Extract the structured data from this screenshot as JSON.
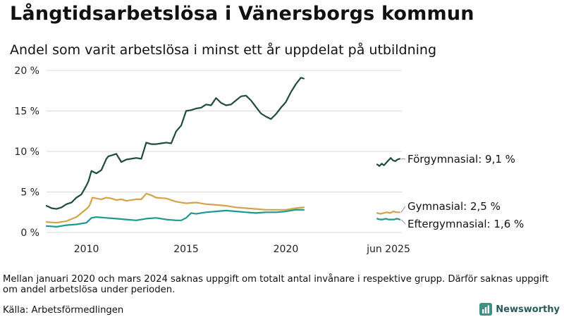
{
  "title": "Långtidsarbetslösa i Vänersborgs kommun",
  "subtitle": "Andel som varit arbetslösa i minst ett år uppdelat på utbildning",
  "footnote": "Mellan januari 2020 och mars 2024 saknas uppgift om totalt antal invånare i respektive grupp. Därför saknas uppgift om andel arbetslösa under perioden.",
  "source": "Källa: Arbetsförmedlingen",
  "brand": "Newsworthy",
  "colors": {
    "forgymnasial": "#1e4a42",
    "gymnasial": "#d4a24a",
    "eftergymnasial": "#1a9a8c",
    "grid": "#d9d9d9",
    "brand": "#2a5a57"
  },
  "chart_data": {
    "type": "line",
    "ylim": [
      0,
      20
    ],
    "y_ticks": [
      {
        "value": 0,
        "label": "0 %"
      },
      {
        "value": 5,
        "label": "5 %"
      },
      {
        "value": 10,
        "label": "10 %"
      },
      {
        "value": 15,
        "label": "15 %"
      },
      {
        "value": 20,
        "label": "20 %"
      }
    ],
    "xlim": [
      2008.0,
      2021.15
    ],
    "x_ticks": [
      {
        "value": 2010,
        "label": "2010"
      },
      {
        "value": 2015,
        "label": "2015"
      },
      {
        "value": 2020,
        "label": "2020"
      }
    ],
    "recent_period_label": "jun 2025",
    "grid": true,
    "series": [
      {
        "key": "forgymnasial",
        "name": "Förgymnasial",
        "end_label": "Förgymnasial: 9,1 %",
        "x": [
          2008.0,
          2008.25,
          2008.5,
          2008.75,
          2009.0,
          2009.25,
          2009.5,
          2009.75,
          2010.0,
          2010.1,
          2010.25,
          2010.5,
          2010.75,
          2011.0,
          2011.1,
          2011.5,
          2011.75,
          2012.0,
          2012.5,
          2012.75,
          2013.0,
          2013.25,
          2013.5,
          2013.75,
          2014.0,
          2014.25,
          2014.5,
          2014.75,
          2015.0,
          2015.25,
          2015.5,
          2015.75,
          2016.0,
          2016.25,
          2016.5,
          2016.75,
          2017.0,
          2017.25,
          2017.5,
          2017.75,
          2018.0,
          2018.25,
          2018.5,
          2018.75,
          2019.0,
          2019.25,
          2019.5,
          2019.75,
          2020.0,
          2020.25,
          2020.5,
          2020.75,
          2020.9
        ],
        "values": [
          3.3,
          3.0,
          2.9,
          3.1,
          3.5,
          3.7,
          4.3,
          4.7,
          5.8,
          6.3,
          7.6,
          7.3,
          7.7,
          9.1,
          9.4,
          9.7,
          8.7,
          9.0,
          9.2,
          9.1,
          11.1,
          10.9,
          10.9,
          11.0,
          11.1,
          11.0,
          12.5,
          13.2,
          15.0,
          15.1,
          15.3,
          15.4,
          15.8,
          15.7,
          16.6,
          16.0,
          15.7,
          15.8,
          16.3,
          16.8,
          16.9,
          16.3,
          15.5,
          14.7,
          14.3,
          14.0,
          14.6,
          15.4,
          16.1,
          17.3,
          18.3,
          19.1,
          19.0
        ],
        "recent_values": [
          8.4,
          8.2,
          8.5,
          8.3,
          8.6,
          8.9,
          9.2,
          8.9,
          8.8,
          9.0,
          9.1
        ]
      },
      {
        "key": "gymnasial",
        "name": "Gymnasial",
        "end_label": "Gymnasial: 2,5 %",
        "x": [
          2008.0,
          2008.5,
          2009.0,
          2009.5,
          2010.0,
          2010.15,
          2010.3,
          2010.75,
          2011.0,
          2011.25,
          2011.5,
          2011.75,
          2012.0,
          2012.5,
          2012.75,
          2013.0,
          2013.25,
          2013.5,
          2014.0,
          2014.5,
          2015.0,
          2015.5,
          2016.0,
          2016.5,
          2017.0,
          2017.5,
          2018.0,
          2018.5,
          2019.0,
          2019.5,
          2020.0,
          2020.5,
          2020.9
        ],
        "values": [
          1.3,
          1.2,
          1.4,
          1.9,
          2.9,
          3.3,
          4.3,
          4.1,
          4.3,
          4.2,
          4.0,
          4.1,
          3.9,
          4.1,
          4.1,
          4.8,
          4.6,
          4.3,
          4.2,
          3.8,
          3.6,
          3.7,
          3.5,
          3.4,
          3.3,
          3.1,
          3.0,
          2.9,
          2.8,
          2.8,
          2.8,
          3.0,
          3.1
        ],
        "recent_values": [
          2.4,
          2.3,
          2.4,
          2.5,
          2.4,
          2.6,
          2.5,
          2.5
        ]
      },
      {
        "key": "eftergymnasial",
        "name": "Eftergymnasial",
        "end_label": "Eftergymnasial: 1,6 %",
        "x": [
          2008.0,
          2008.5,
          2009.0,
          2009.5,
          2010.0,
          2010.25,
          2010.5,
          2011.0,
          2011.5,
          2012.0,
          2012.5,
          2013.0,
          2013.5,
          2014.0,
          2014.5,
          2014.75,
          2015.0,
          2015.25,
          2015.5,
          2016.0,
          2016.5,
          2017.0,
          2017.5,
          2018.0,
          2018.5,
          2019.0,
          2019.5,
          2020.0,
          2020.5,
          2020.9
        ],
        "values": [
          0.8,
          0.7,
          0.9,
          1.0,
          1.2,
          1.8,
          1.9,
          1.8,
          1.7,
          1.6,
          1.5,
          1.7,
          1.8,
          1.6,
          1.5,
          1.5,
          1.8,
          2.4,
          2.3,
          2.5,
          2.6,
          2.7,
          2.6,
          2.5,
          2.4,
          2.5,
          2.5,
          2.6,
          2.8,
          2.8
        ],
        "recent_values": [
          1.7,
          1.6,
          1.6,
          1.7,
          1.6,
          1.6,
          1.6,
          1.7,
          1.6
        ]
      }
    ]
  }
}
